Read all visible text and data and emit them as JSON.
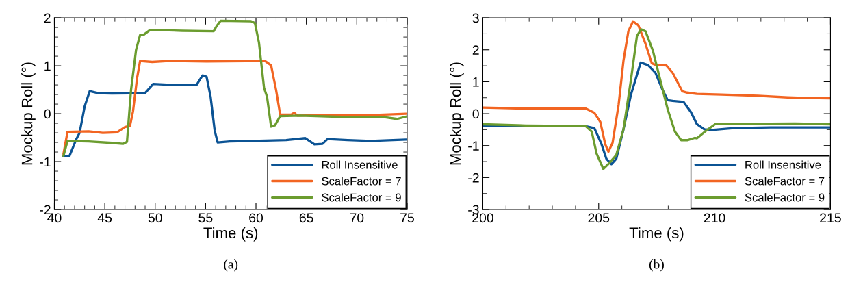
{
  "chart_data": [
    {
      "type": "line",
      "xlabel": "Time (s)",
      "ylabel": "Mockup Roll (°)",
      "annotations": [
        "(a)"
      ],
      "xlim": [
        40,
        75
      ],
      "xticks": [
        40,
        45,
        50,
        55,
        60,
        65,
        70,
        75
      ],
      "ylim": [
        -2,
        2
      ],
      "yticks": [
        -2,
        -1,
        0,
        1,
        2
      ],
      "legend": "bottom right",
      "grid": false,
      "series": [
        {
          "name": "Roll Insensitive",
          "color": "#0b5394",
          "x": [
            40.9,
            41.5,
            42.2,
            42.5,
            43.0,
            43.5,
            44.3,
            45.7,
            49.0,
            49.8,
            51.8,
            54.1,
            54.7,
            55.1,
            55.5,
            55.9,
            56.2,
            57.4,
            59.7,
            63.0,
            64.9,
            65.8,
            66.6,
            67.1,
            69.1,
            71.4,
            74.9
          ],
          "values": [
            -0.89,
            -0.88,
            -0.52,
            -0.4,
            0.15,
            0.47,
            0.43,
            0.42,
            0.43,
            0.62,
            0.6,
            0.6,
            0.8,
            0.77,
            0.35,
            -0.35,
            -0.6,
            -0.58,
            -0.57,
            -0.55,
            -0.51,
            -0.64,
            -0.63,
            -0.53,
            -0.55,
            -0.57,
            -0.54
          ]
        },
        {
          "name": "ScaleFactor = 7",
          "color": "#f26522",
          "x": [
            40.9,
            41.3,
            43.4,
            44.8,
            46.2,
            47.0,
            47.5,
            47.8,
            48.2,
            48.5,
            49.7,
            51.3,
            55.1,
            60.9,
            61.5,
            62.0,
            62.4,
            63.5,
            63.8,
            64.1,
            66.8,
            71.4,
            74.9
          ],
          "values": [
            -0.84,
            -0.38,
            -0.37,
            -0.4,
            -0.39,
            -0.28,
            -0.25,
            0.05,
            0.74,
            1.1,
            1.08,
            1.1,
            1.09,
            1.1,
            1.01,
            0.49,
            -0.02,
            -0.02,
            0.02,
            -0.04,
            -0.03,
            -0.03,
            0.0
          ]
        },
        {
          "name": "ScaleFactor = 9",
          "color": "#6b9c2f",
          "x": [
            40.9,
            41.3,
            43.4,
            45.7,
            46.8,
            47.2,
            47.6,
            48.1,
            48.5,
            48.8,
            49.5,
            52.7,
            55.8,
            56.1,
            56.5,
            59.5,
            59.9,
            60.3,
            60.8,
            61.1,
            61.5,
            61.9,
            62.4,
            64.4,
            69.1,
            72.6,
            74.0,
            74.9
          ],
          "values": [
            -0.88,
            -0.57,
            -0.58,
            -0.61,
            -0.63,
            -0.59,
            0.49,
            1.33,
            1.64,
            1.64,
            1.75,
            1.73,
            1.72,
            1.83,
            1.94,
            1.93,
            1.89,
            1.48,
            0.54,
            0.35,
            -0.27,
            -0.24,
            -0.05,
            -0.04,
            -0.07,
            -0.07,
            -0.11,
            -0.06
          ]
        }
      ]
    },
    {
      "type": "line",
      "xlabel": "Time (s)",
      "ylabel": "Mockup Roll (°)",
      "annotations": [
        "(b)"
      ],
      "xlim": [
        200,
        215
      ],
      "xticks": [
        200,
        205,
        210,
        215
      ],
      "ylim": [
        -3,
        3
      ],
      "yticks": [
        -3,
        -2,
        -1,
        0,
        1,
        2,
        3
      ],
      "legend": "bottom right",
      "grid": false,
      "series": [
        {
          "name": "Roll Insensitive",
          "color": "#0b5394",
          "x": [
            200,
            201.85,
            204.44,
            204.81,
            205.12,
            205.33,
            205.55,
            205.76,
            206.07,
            206.39,
            206.81,
            207.13,
            207.45,
            207.76,
            207.98,
            208.19,
            208.66,
            208.98,
            209.24,
            209.56,
            209.88,
            210.83,
            212.41,
            215
          ],
          "values": [
            -0.39,
            -0.39,
            -0.39,
            -0.45,
            -0.95,
            -1.41,
            -1.58,
            -1.41,
            -0.49,
            0.59,
            1.6,
            1.52,
            1.28,
            0.74,
            0.42,
            0.4,
            0.37,
            0.05,
            -0.33,
            -0.49,
            -0.51,
            -0.45,
            -0.43,
            -0.43
          ]
        },
        {
          "name": "ScaleFactor = 7",
          "color": "#f26522",
          "x": [
            200,
            201.85,
            204.44,
            204.81,
            205.07,
            205.28,
            205.42,
            205.6,
            205.86,
            206.07,
            206.28,
            206.48,
            206.71,
            207.02,
            207.29,
            207.45,
            207.92,
            208.19,
            208.61,
            208.82,
            209.24,
            210.3,
            211.88,
            213.15,
            214.0,
            215
          ],
          "values": [
            0.19,
            0.16,
            0.16,
            0.03,
            -0.26,
            -0.95,
            -1.19,
            -0.91,
            0.28,
            1.66,
            2.58,
            2.89,
            2.77,
            2.19,
            1.58,
            1.53,
            1.51,
            1.28,
            0.7,
            0.66,
            0.62,
            0.6,
            0.56,
            0.51,
            0.49,
            0.48
          ]
        },
        {
          "name": "ScaleFactor = 9",
          "color": "#6b9c2f",
          "x": [
            200,
            201.85,
            204.44,
            204.7,
            204.91,
            205.2,
            205.44,
            205.76,
            206.07,
            206.39,
            206.65,
            206.83,
            207.02,
            207.34,
            207.66,
            207.98,
            208.29,
            208.56,
            208.82,
            209.14,
            209.24,
            209.66,
            210.04,
            211.36,
            213.47,
            215
          ],
          "values": [
            -0.33,
            -0.37,
            -0.39,
            -0.56,
            -1.25,
            -1.73,
            -1.56,
            -1.29,
            -0.49,
            1.05,
            2.43,
            2.64,
            2.58,
            1.97,
            1.05,
            0.13,
            -0.56,
            -0.83,
            -0.83,
            -0.76,
            -0.77,
            -0.52,
            -0.32,
            -0.32,
            -0.31,
            -0.33
          ]
        }
      ]
    }
  ]
}
